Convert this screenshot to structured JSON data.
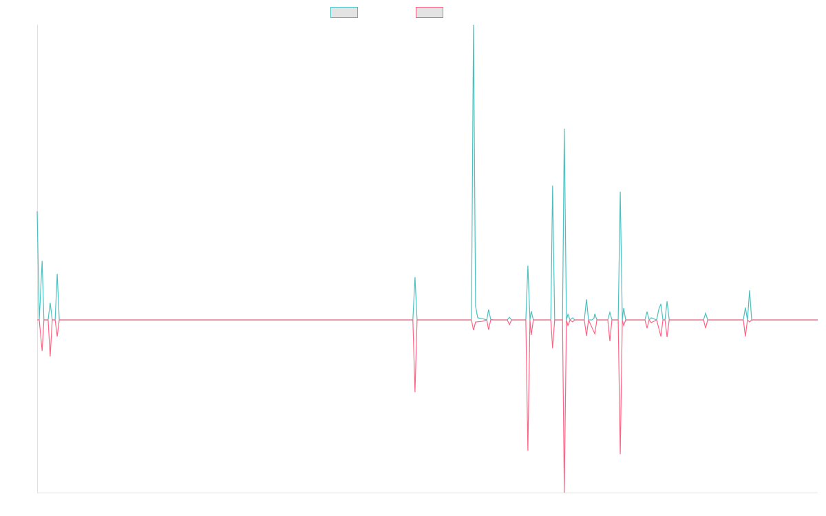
{
  "chart_data": {
    "type": "line",
    "title": "",
    "xlabel": "",
    "ylabel": "",
    "xlim": [
      0,
      300
    ],
    "ylim": [
      -58.5,
      100
    ],
    "grid": false,
    "legend_placement": "top-center",
    "series": [
      {
        "color": "#4bc0c0",
        "points": [
          [
            0,
            36.8
          ],
          [
            0.8,
            0
          ],
          [
            1.9,
            20.0
          ],
          [
            2.6,
            0
          ],
          [
            4.2,
            0
          ],
          [
            5.0,
            5.8
          ],
          [
            5.8,
            0
          ],
          [
            6.9,
            0
          ],
          [
            7.7,
            15.6
          ],
          [
            8.5,
            0
          ],
          [
            144.4,
            0
          ],
          [
            145.2,
            14.5
          ],
          [
            146.0,
            0
          ],
          [
            166.9,
            0
          ],
          [
            167.7,
            100
          ],
          [
            168.5,
            4.7
          ],
          [
            169.3,
            0.7
          ],
          [
            170.9,
            0.5
          ],
          [
            172.8,
            0
          ],
          [
            173.5,
            3.5
          ],
          [
            174.3,
            0.2
          ],
          [
            175.4,
            0
          ],
          [
            180.7,
            0
          ],
          [
            181.5,
            0.9
          ],
          [
            182.3,
            0
          ],
          [
            187.8,
            0
          ],
          [
            188.6,
            18.4
          ],
          [
            189.4,
            0
          ],
          [
            189.9,
            3.0
          ],
          [
            190.7,
            0
          ],
          [
            197.4,
            0
          ],
          [
            198.1,
            45.5
          ],
          [
            198.9,
            0
          ],
          [
            201.9,
            0
          ],
          [
            202.6,
            64.8
          ],
          [
            203.4,
            0
          ],
          [
            204.0,
            1.9
          ],
          [
            204.8,
            0
          ],
          [
            205.8,
            0.7
          ],
          [
            206.6,
            0
          ],
          [
            210.3,
            0
          ],
          [
            211.1,
            7.0
          ],
          [
            211.9,
            0
          ],
          [
            213.2,
            0
          ],
          [
            214.0,
            0.5
          ],
          [
            214.3,
            2.1
          ],
          [
            215.1,
            0
          ],
          [
            219.3,
            0
          ],
          [
            220.1,
            2.6
          ],
          [
            220.9,
            0
          ],
          [
            223.3,
            0
          ],
          [
            224.1,
            43.4
          ],
          [
            224.9,
            0
          ],
          [
            225.4,
            4.0
          ],
          [
            226.2,
            0
          ],
          [
            233.6,
            0
          ],
          [
            234.4,
            2.8
          ],
          [
            235.2,
            0
          ],
          [
            236.0,
            0.7
          ],
          [
            238.1,
            0
          ],
          [
            238.9,
            3.5
          ],
          [
            239.7,
            5.4
          ],
          [
            240.5,
            0
          ],
          [
            241.3,
            0
          ],
          [
            242.1,
            6.3
          ],
          [
            242.9,
            0
          ],
          [
            256.1,
            0
          ],
          [
            256.9,
            2.3
          ],
          [
            257.7,
            0
          ],
          [
            271.4,
            0
          ],
          [
            272.2,
            4.2
          ],
          [
            273.0,
            0
          ],
          [
            273.8,
            10.0
          ],
          [
            274.6,
            0
          ],
          [
            300,
            0
          ]
        ]
      },
      {
        "color": "#ff6384",
        "points": [
          [
            0,
            0
          ],
          [
            0.8,
            0
          ],
          [
            1.9,
            -10.5
          ],
          [
            2.6,
            0
          ],
          [
            4.2,
            0
          ],
          [
            5.0,
            -12.4
          ],
          [
            5.8,
            0
          ],
          [
            6.9,
            0
          ],
          [
            7.7,
            -5.6
          ],
          [
            8.5,
            0
          ],
          [
            144.4,
            0
          ],
          [
            145.2,
            -24.5
          ],
          [
            146.0,
            0
          ],
          [
            166.9,
            0
          ],
          [
            167.7,
            -3.5
          ],
          [
            168.5,
            -0.7
          ],
          [
            170.9,
            -0.5
          ],
          [
            172.8,
            0
          ],
          [
            173.5,
            -3.3
          ],
          [
            174.3,
            0
          ],
          [
            180.7,
            0
          ],
          [
            181.5,
            -1.6
          ],
          [
            182.3,
            0
          ],
          [
            187.8,
            0
          ],
          [
            188.6,
            -44.3
          ],
          [
            189.4,
            0
          ],
          [
            189.9,
            -5.1
          ],
          [
            190.7,
            0
          ],
          [
            197.4,
            0
          ],
          [
            198.1,
            -9.6
          ],
          [
            198.9,
            0
          ],
          [
            201.9,
            0
          ],
          [
            202.6,
            -58.5
          ],
          [
            203.4,
            0
          ],
          [
            204.0,
            -1.9
          ],
          [
            204.8,
            0
          ],
          [
            205.8,
            -0.7
          ],
          [
            206.6,
            0
          ],
          [
            210.3,
            0
          ],
          [
            211.1,
            -5.4
          ],
          [
            211.9,
            0
          ],
          [
            214.3,
            -4.7
          ],
          [
            215.1,
            0
          ],
          [
            219.3,
            0
          ],
          [
            220.1,
            -7.2
          ],
          [
            220.9,
            0
          ],
          [
            223.3,
            0
          ],
          [
            224.1,
            -45.5
          ],
          [
            224.9,
            0
          ],
          [
            225.4,
            -1.9
          ],
          [
            226.2,
            0
          ],
          [
            233.6,
            0
          ],
          [
            234.4,
            -2.8
          ],
          [
            235.2,
            0
          ],
          [
            236.0,
            -0.9
          ],
          [
            238.1,
            0
          ],
          [
            239.7,
            -5.6
          ],
          [
            240.5,
            0
          ],
          [
            241.3,
            0
          ],
          [
            242.1,
            -5.8
          ],
          [
            242.9,
            0
          ],
          [
            256.1,
            0
          ],
          [
            256.9,
            -2.8
          ],
          [
            257.7,
            0
          ],
          [
            271.4,
            0
          ],
          [
            272.2,
            -5.6
          ],
          [
            273.0,
            0
          ],
          [
            273.8,
            -0.7
          ],
          [
            274.6,
            0
          ],
          [
            300,
            0
          ]
        ]
      }
    ]
  }
}
